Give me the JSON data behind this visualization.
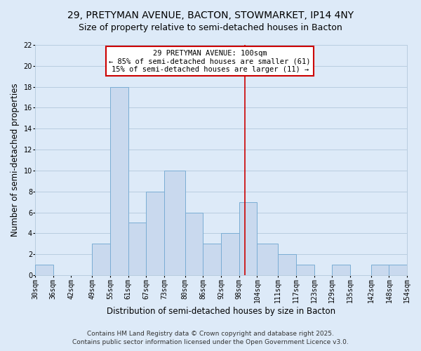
{
  "title": "29, PRETYMAN AVENUE, BACTON, STOWMARKET, IP14 4NY",
  "subtitle": "Size of property relative to semi-detached houses in Bacton",
  "xlabel": "Distribution of semi-detached houses by size in Bacton",
  "ylabel": "Number of semi-detached properties",
  "bin_edges": [
    30,
    36,
    42,
    49,
    55,
    61,
    67,
    73,
    80,
    86,
    92,
    98,
    104,
    111,
    117,
    123,
    129,
    135,
    142,
    148,
    154
  ],
  "bar_heights": [
    1,
    0,
    0,
    3,
    18,
    5,
    8,
    10,
    6,
    3,
    4,
    7,
    3,
    2,
    1,
    0,
    1,
    0,
    1,
    1
  ],
  "bar_color": "#c9d9ee",
  "bar_edge_color": "#7aadd4",
  "vline_x": 100,
  "vline_color": "#cc0000",
  "ylim": [
    0,
    22
  ],
  "yticks": [
    0,
    2,
    4,
    6,
    8,
    10,
    12,
    14,
    16,
    18,
    20,
    22
  ],
  "grid_color": "#b8cde0",
  "bg_color": "#ddeaf8",
  "plot_bg_color": "#ddeaf8",
  "annotation_title": "29 PRETYMAN AVENUE: 100sqm",
  "annotation_line1": "← 85% of semi-detached houses are smaller (61)",
  "annotation_line2": "15% of semi-detached houses are larger (11) →",
  "annotation_box_color": "#ffffff",
  "annotation_box_edge": "#cc0000",
  "tick_labels": [
    "30sqm",
    "36sqm",
    "42sqm",
    "49sqm",
    "55sqm",
    "61sqm",
    "67sqm",
    "73sqm",
    "80sqm",
    "86sqm",
    "92sqm",
    "98sqm",
    "104sqm",
    "111sqm",
    "117sqm",
    "123sqm",
    "129sqm",
    "135sqm",
    "142sqm",
    "148sqm",
    "154sqm"
  ],
  "footer1": "Contains HM Land Registry data © Crown copyright and database right 2025.",
  "footer2": "Contains public sector information licensed under the Open Government Licence v3.0.",
  "title_fontsize": 10,
  "subtitle_fontsize": 9,
  "axis_label_fontsize": 8.5,
  "tick_fontsize": 7,
  "footer_fontsize": 6.5,
  "annotation_fontsize": 7.5
}
